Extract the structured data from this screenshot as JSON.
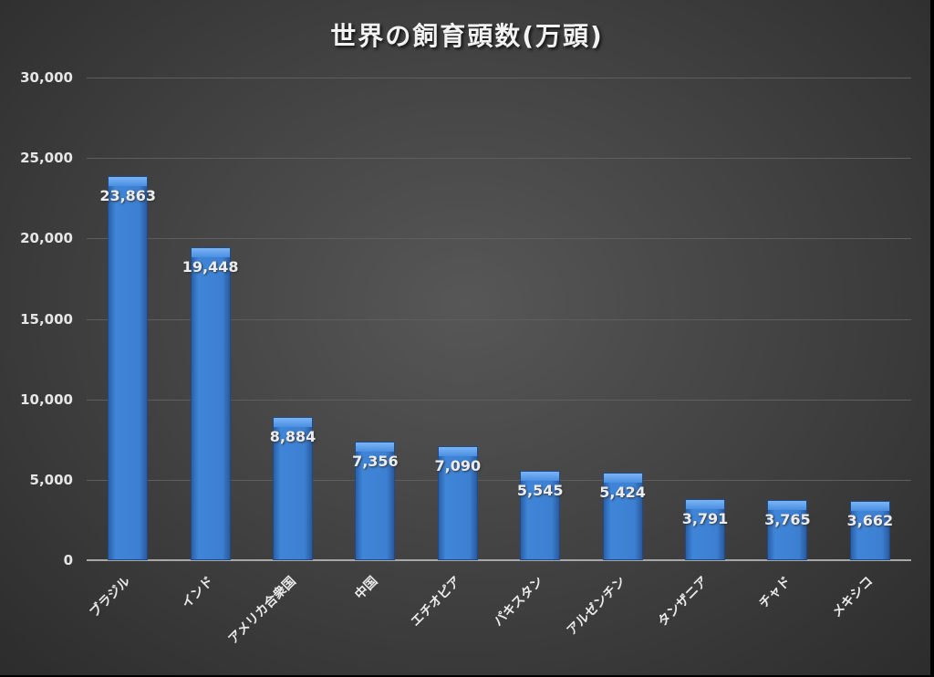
{
  "chart_data": {
    "type": "bar",
    "title": "世界の飼育頭数(万頭)",
    "xlabel": "",
    "ylabel": "",
    "ylim": [
      0,
      30000
    ],
    "yticks": [
      "0",
      "5,000",
      "10,000",
      "15,000",
      "20,000",
      "25,000",
      "30,000"
    ],
    "grid": true,
    "legend": null,
    "categories": [
      "ブラジル",
      "インド",
      "アメリカ合衆国",
      "中国",
      "エチオピア",
      "パキスタン",
      "アルゼンチン",
      "タンザニア",
      "チャド",
      "メキシコ"
    ],
    "values": [
      23863,
      19448,
      8884,
      7356,
      7090,
      5545,
      5424,
      3791,
      3765,
      3662
    ],
    "value_labels": [
      "23,863",
      "19,448",
      "8,884",
      "7,356",
      "7,090",
      "5,545",
      "5,424",
      "3,791",
      "3,765",
      "3,662"
    ],
    "bar_color": "#3d80d2",
    "background_color": "#444444"
  }
}
